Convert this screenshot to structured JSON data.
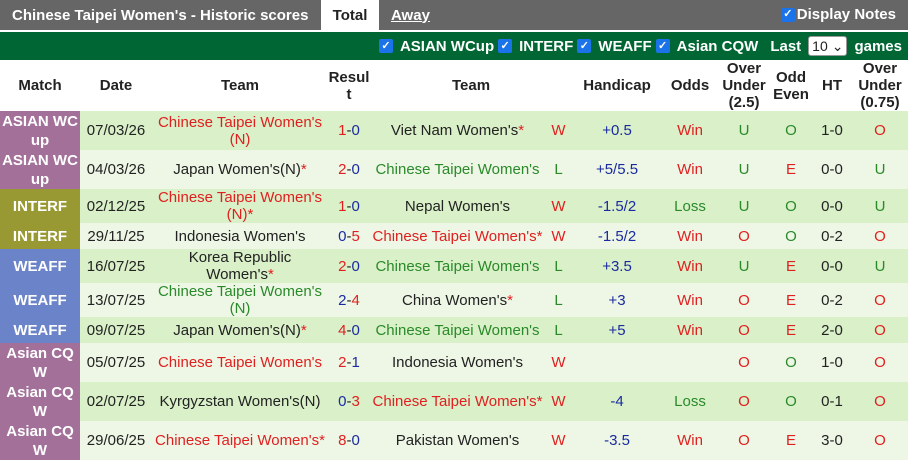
{
  "header": {
    "title": "Chinese Taipei Women's - Historic scores",
    "tabs": [
      "Total",
      "Away"
    ],
    "display_notes": "Display Notes"
  },
  "filters": {
    "items": [
      "ASIAN WCup",
      "INTERF",
      "WEAFF",
      "Asian CQW"
    ],
    "last_label": "Last",
    "last_value": "10",
    "games_label": "games"
  },
  "columns": [
    "Match",
    "Date",
    "Team",
    "Resul t",
    "Team",
    "Handicap",
    "Odds",
    "Over Under (2.5)",
    "Odd Even",
    "HT",
    "Over Under (0.75)"
  ],
  "colors": {
    "asian": "#a3709a",
    "interf": "#999933",
    "weaff": "#6b84c9",
    "win": "#e02020",
    "loss": "#2a8a2a"
  },
  "rows": [
    {
      "match": "ASIAN WC up",
      "mc": "asian",
      "date": "07/03/26",
      "home": "Chinese Taipei Women's (N)",
      "hc": "red",
      "hstar": false,
      "hs": "1",
      "as": "0",
      "away": "Viet Nam Women's",
      "ac": "",
      "astar": true,
      "wl": "W",
      "hcap": "+0.5",
      "odds": "Win",
      "ou": "U",
      "oe": "O",
      "ht": "1-0",
      "ou2": "O"
    },
    {
      "match": "ASIAN WC up",
      "mc": "asian",
      "date": "04/03/26",
      "home": "Japan Women's(N)",
      "hc": "",
      "hstar": true,
      "hs": "2",
      "as": "0",
      "away": "Chinese Taipei Women's",
      "ac": "green",
      "astar": false,
      "wl": "L",
      "hcap": "+5/5.5",
      "odds": "Win",
      "ou": "U",
      "oe": "E",
      "ht": "0-0",
      "ou2": "U"
    },
    {
      "match": "INTERF",
      "mc": "interf",
      "date": "02/12/25",
      "home": "Chinese Taipei Women's (N)",
      "hc": "red",
      "hstar": true,
      "hs": "1",
      "as": "0",
      "away": "Nepal Women's",
      "ac": "",
      "astar": false,
      "wl": "W",
      "hcap": "-1.5/2",
      "odds": "Loss",
      "ou": "U",
      "oe": "O",
      "ht": "0-0",
      "ou2": "U"
    },
    {
      "match": "INTERF",
      "mc": "interf",
      "date": "29/11/25",
      "home": "Indonesia Women's",
      "hc": "",
      "hstar": false,
      "hs": "0",
      "as": "5",
      "away": "Chinese Taipei Women's",
      "ac": "red",
      "astar": true,
      "wl": "W",
      "hcap": "-1.5/2",
      "odds": "Win",
      "ou": "O",
      "oe": "O",
      "ht": "0-2",
      "ou2": "O"
    },
    {
      "match": "WEAFF",
      "mc": "weaff",
      "date": "16/07/25",
      "home": "Korea Republic Women's",
      "hc": "",
      "hstar": true,
      "hs": "2",
      "as": "0",
      "away": "Chinese Taipei Women's",
      "ac": "green",
      "astar": false,
      "wl": "L",
      "hcap": "+3.5",
      "odds": "Win",
      "ou": "U",
      "oe": "E",
      "ht": "0-0",
      "ou2": "U"
    },
    {
      "match": "WEAFF",
      "mc": "weaff",
      "date": "13/07/25",
      "home": "Chinese Taipei Women's (N)",
      "hc": "green",
      "hstar": false,
      "hs": "2",
      "as": "4",
      "away": "China Women's",
      "ac": "",
      "astar": true,
      "wl": "L",
      "hcap": "+3",
      "odds": "Win",
      "ou": "O",
      "oe": "E",
      "ht": "0-2",
      "ou2": "O"
    },
    {
      "match": "WEAFF",
      "mc": "weaff",
      "date": "09/07/25",
      "home": "Japan Women's(N)",
      "hc": "",
      "hstar": true,
      "hs": "4",
      "as": "0",
      "away": "Chinese Taipei Women's",
      "ac": "green",
      "astar": false,
      "wl": "L",
      "hcap": "+5",
      "odds": "Win",
      "ou": "O",
      "oe": "E",
      "ht": "2-0",
      "ou2": "O"
    },
    {
      "match": "Asian CQ W",
      "mc": "asian",
      "date": "05/07/25",
      "home": "Chinese Taipei Women's",
      "hc": "red",
      "hstar": false,
      "hs": "2",
      "as": "1",
      "away": "Indonesia Women's",
      "ac": "",
      "astar": false,
      "wl": "W",
      "hcap": "",
      "odds": "",
      "ou": "O",
      "oe": "O",
      "ht": "1-0",
      "ou2": "O"
    },
    {
      "match": "Asian CQ W",
      "mc": "asian",
      "date": "02/07/25",
      "home": "Kyrgyzstan Women's(N)",
      "hc": "",
      "hstar": false,
      "hs": "0",
      "as": "3",
      "away": "Chinese Taipei Women's",
      "ac": "red",
      "astar": true,
      "wl": "W",
      "hcap": "-4",
      "odds": "Loss",
      "ou": "O",
      "oe": "O",
      "ht": "0-1",
      "ou2": "O"
    },
    {
      "match": "Asian CQ W",
      "mc": "asian",
      "date": "29/06/25",
      "home": "Chinese Taipei Women's",
      "hc": "red",
      "hstar": true,
      "hs": "8",
      "as": "0",
      "away": "Pakistan Women's",
      "ac": "",
      "astar": false,
      "wl": "W",
      "hcap": "-3.5",
      "odds": "Win",
      "ou": "O",
      "oe": "E",
      "ht": "3-0",
      "ou2": "O"
    }
  ]
}
